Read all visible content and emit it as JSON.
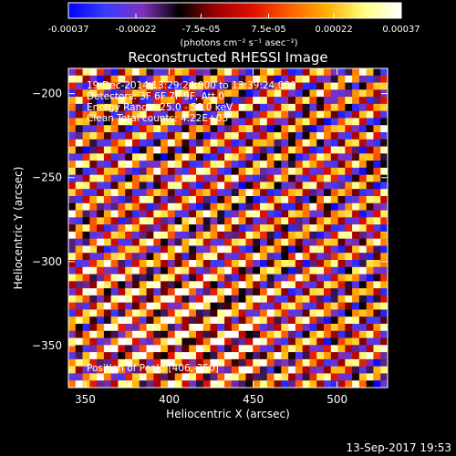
{
  "colorbar": {
    "tick_labels": [
      "-0.00037",
      "-0.00022",
      "-7.5e-05",
      "7.5e-05",
      "0.00022",
      "0.00037"
    ],
    "unit_label": "(photons cm⁻² s⁻¹ asec⁻²)",
    "range": [
      -0.00037,
      0.00037
    ],
    "colors": [
      "#0000ff",
      "#3a3aff",
      "#8030c0",
      "#000000",
      "#a00000",
      "#e01000",
      "#ff6000",
      "#ffb000",
      "#ffff80",
      "#ffffff"
    ]
  },
  "chart_data": {
    "type": "heatmap",
    "title": "Reconstructed RHESSI Image",
    "xlabel": "Heliocentric X (arcsec)",
    "ylabel": "Heliocentric Y (arcsec)",
    "xlim": [
      340,
      530
    ],
    "ylim": [
      -375,
      -185
    ],
    "x_ticks": [
      350,
      400,
      450,
      500
    ],
    "y_ticks": [
      -200,
      -250,
      -300,
      -350
    ],
    "grid": false,
    "annotations": [
      "19-Dec-2014 13:29:24.000 to 13:39:24.000",
      "Detectors: 3F 6F 7F 9F, Att 0",
      "Energy Range: 25.0 - 50.0 keV",
      "Clean     Total counts: 4.22E+03"
    ],
    "peak_label": "Position of Peak:  [406,-350]",
    "peak": [
      406,
      -350
    ],
    "stripe_pattern": "diagonal fringes, upper-left to lower-right"
  },
  "footer": {
    "timestamp": "13-Sep-2017 19:53"
  }
}
